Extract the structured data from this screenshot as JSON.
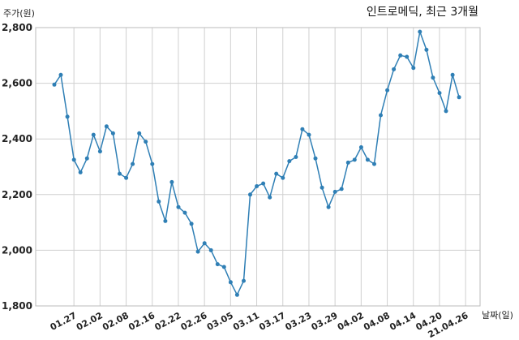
{
  "chart_data": {
    "type": "line",
    "title": "인트로메딕, 최근 3개월",
    "ylabel": "주가(원)",
    "xlabel": "날짜(일)",
    "ylim": [
      1800,
      2800
    ],
    "yticks": [
      1800,
      2000,
      2200,
      2400,
      2600,
      2800
    ],
    "ytick_labels": [
      "1,800",
      "2,000",
      "2,200",
      "2,400",
      "2,600",
      "2,800"
    ],
    "xtick_labels": [
      "01.27",
      "02.02",
      "02.08",
      "02.16",
      "02.22",
      "02.26",
      "03.05",
      "03.11",
      "03.17",
      "03.23",
      "03.29",
      "04.02",
      "04.08",
      "04.14",
      "04.20",
      "21.04.26"
    ],
    "xtick_index": [
      3,
      7,
      11,
      15,
      19,
      23,
      27,
      31,
      35,
      39,
      43,
      47,
      51,
      55,
      59,
      63
    ],
    "grid": true,
    "series": [
      {
        "color": "#2f7fb5",
        "values": [
          2595,
          2630,
          2480,
          2325,
          2280,
          2330,
          2415,
          2355,
          2445,
          2420,
          2275,
          2260,
          2310,
          2420,
          2390,
          2310,
          2175,
          2105,
          2245,
          2155,
          2135,
          2095,
          1995,
          2025,
          2000,
          1950,
          1940,
          1885,
          1840,
          1890,
          2200,
          2230,
          2240,
          2190,
          2275,
          2260,
          2320,
          2335,
          2435,
          2415,
          2330,
          2225,
          2155,
          2210,
          2220,
          2315,
          2325,
          2370,
          2325,
          2310,
          2485,
          2575,
          2650,
          2700,
          2695,
          2655,
          2785,
          2720,
          2620,
          2565,
          2500,
          2630,
          2550
        ]
      }
    ]
  }
}
